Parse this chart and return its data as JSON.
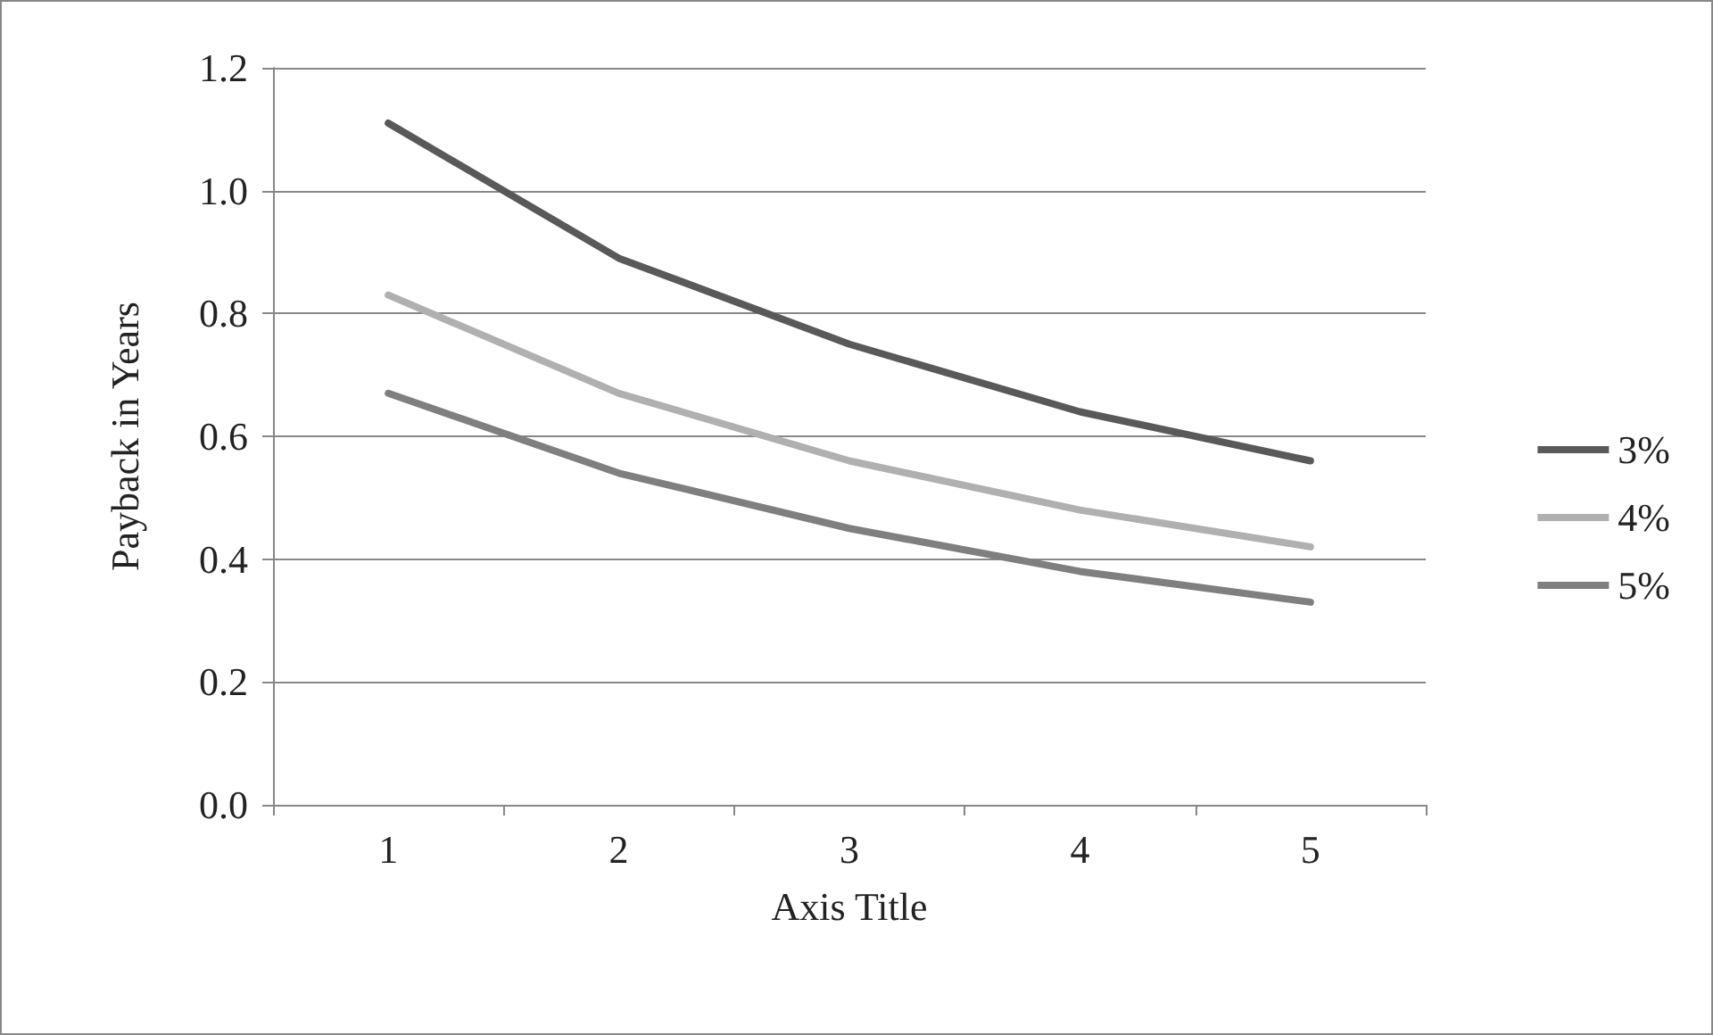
{
  "chart_data": {
    "type": "line",
    "xlabel": "Axis Title",
    "ylabel": "Payback in Years",
    "categories": [
      "1",
      "2",
      "3",
      "4",
      "5"
    ],
    "series": [
      {
        "name": "3%",
        "color": "#595959",
        "values": [
          1.11,
          0.89,
          0.75,
          0.64,
          0.56
        ]
      },
      {
        "name": "4%",
        "color": "#b0b0b0",
        "values": [
          0.83,
          0.67,
          0.56,
          0.48,
          0.42
        ]
      },
      {
        "name": "5%",
        "color": "#7f7f7f",
        "values": [
          0.67,
          0.54,
          0.45,
          0.38,
          0.33
        ]
      }
    ],
    "ylim": [
      0,
      1.2
    ],
    "yticks": [
      {
        "value": 0,
        "label": "0.0"
      },
      0.2,
      0.4,
      0.6,
      0.8,
      {
        "value": 1,
        "label": "1.0"
      },
      1.2
    ],
    "grid": "y",
    "legend": "right",
    "marker": "none",
    "line_style": "solid"
  }
}
